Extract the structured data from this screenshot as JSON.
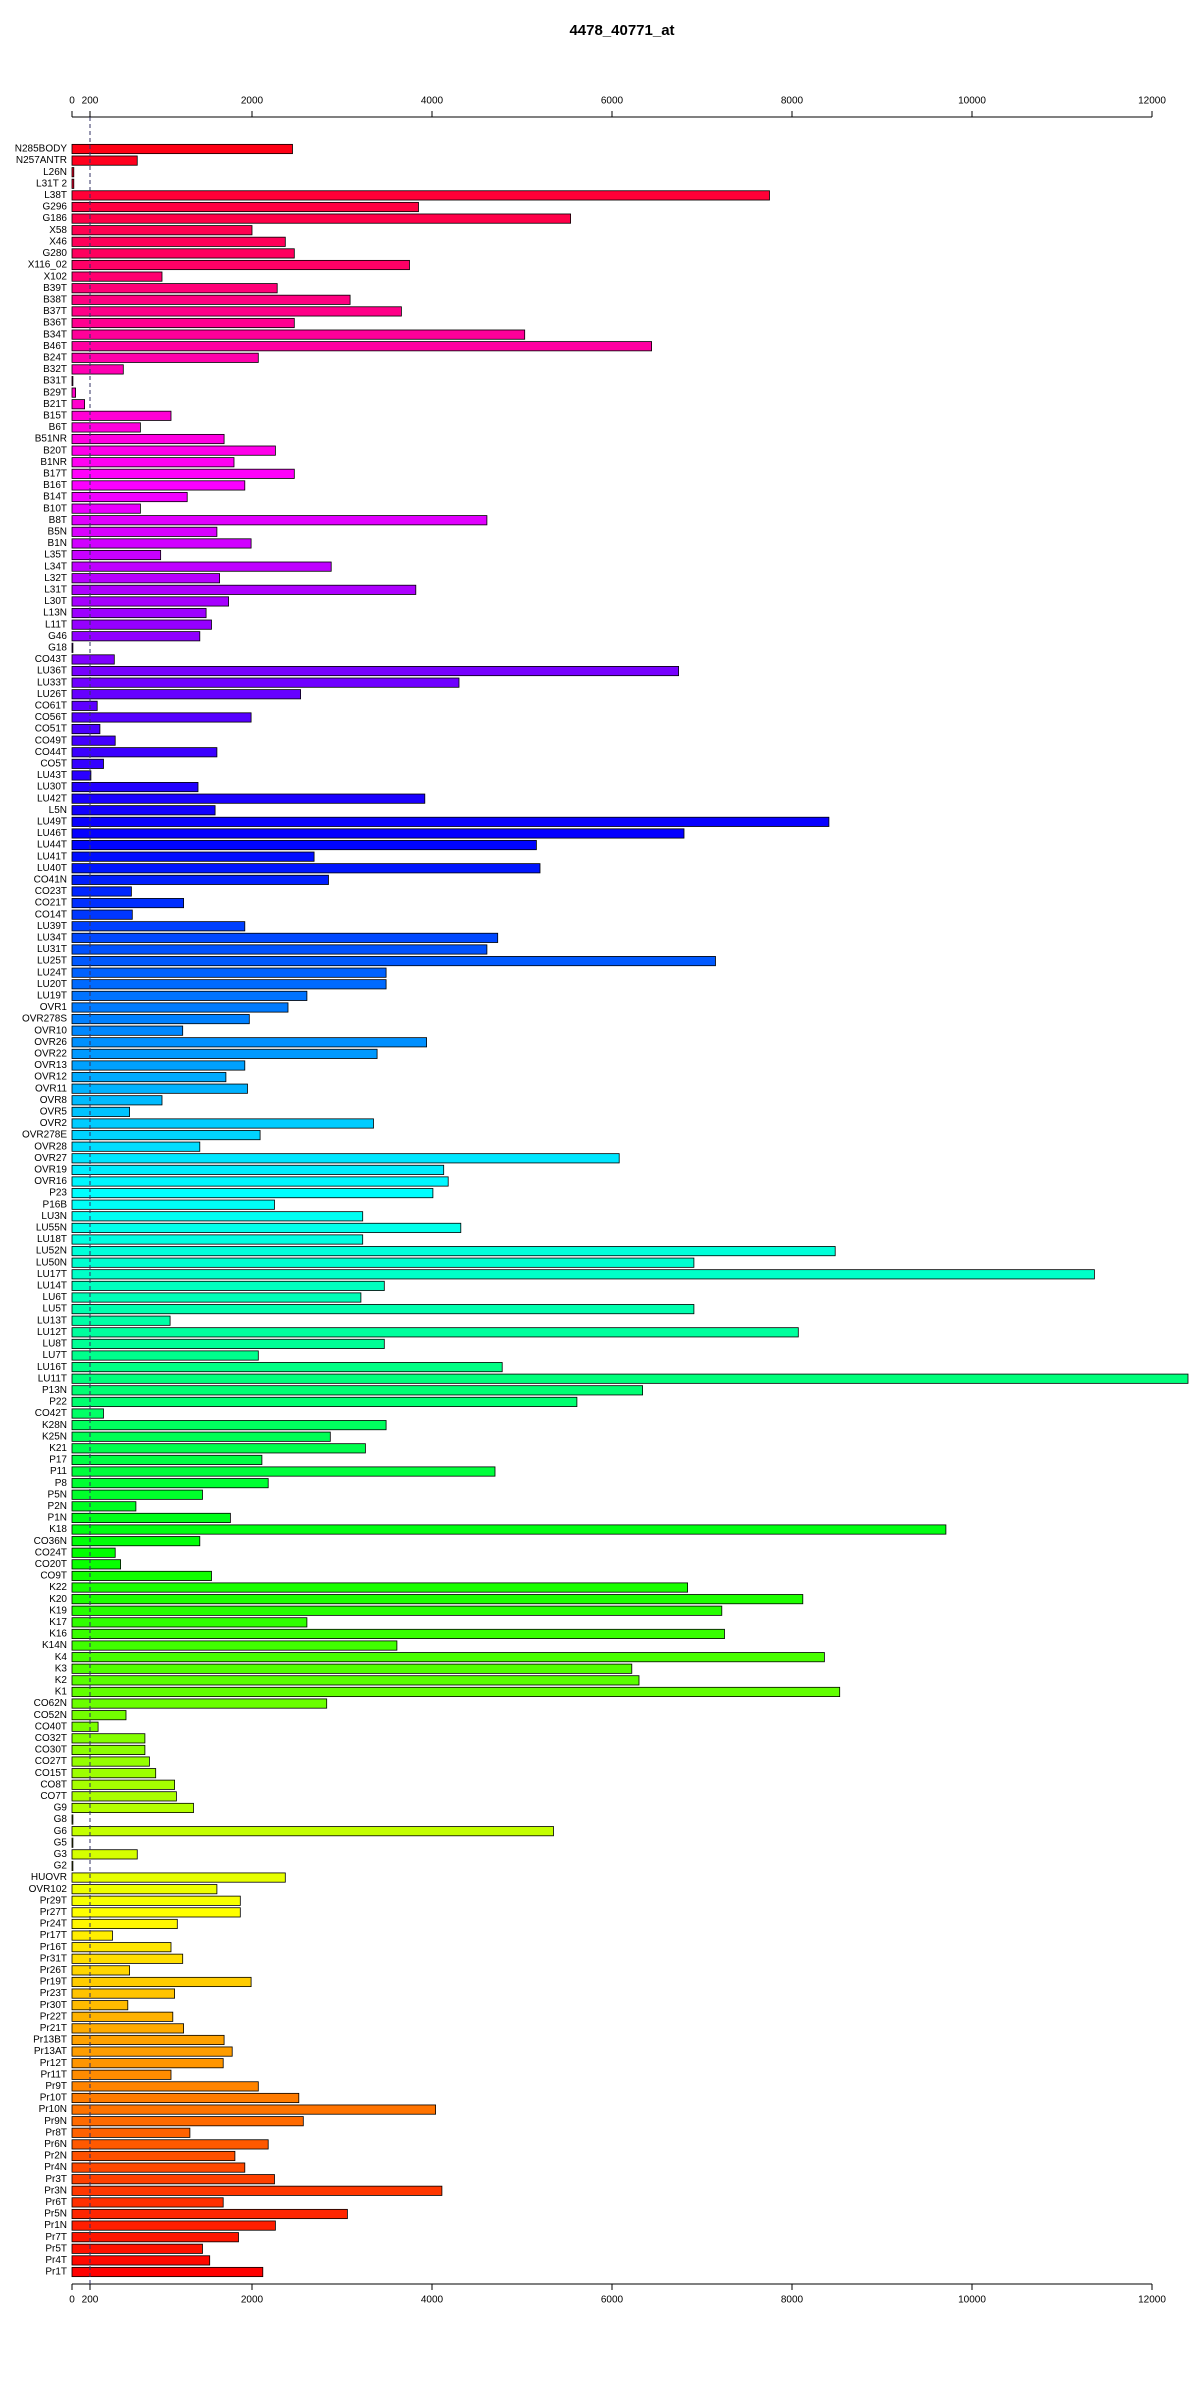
{
  "chart_data": {
    "type": "barh",
    "title": "4478_40771_at",
    "categories": [
      "N285BODY",
      "N257ANTR",
      "L26N",
      "L31T 2",
      "L38T",
      "G296",
      "G186",
      "X58",
      "X46",
      "G280",
      "X116_02",
      "X102",
      "B39T",
      "B38T",
      "B37T",
      "B36T",
      "B34T",
      "B46T",
      "B24T",
      "B32T",
      "B31T",
      "B29T",
      "B21T",
      "B15T",
      "B6T",
      "B51NR",
      "B20T",
      "B1NR",
      "B17T",
      "B16T",
      "B14T",
      "B10T",
      "B8T",
      "B5N",
      "B1N",
      "L35T",
      "L34T",
      "L32T",
      "L31T",
      "L30T",
      "L13N",
      "L11T",
      "G46",
      "G18",
      "CO43T",
      "LU36T",
      "LU33T",
      "LU26T",
      "CO61T",
      "CO56T",
      "CO51T",
      "CO49T",
      "CO44T",
      "CO5T",
      "LU43T",
      "LU30T",
      "LU42T",
      "L5N",
      "LU49T",
      "LU46T",
      "LU44T",
      "LU41T",
      "LU40T",
      "CO41N",
      "CO23T",
      "CO21T",
      "CO14T",
      "LU39T",
      "LU34T",
      "LU31T",
      "LU25T",
      "LU24T",
      "LU20T",
      "LU19T",
      "OVR1",
      "OVR278S",
      "OVR10",
      "OVR26",
      "OVR22",
      "OVR13",
      "OVR12",
      "OVR11",
      "OVR8",
      "OVR5",
      "OVR2",
      "OVR278E",
      "OVR28",
      "OVR27",
      "OVR19",
      "OVR16",
      "P23",
      "P16B",
      "LU3N",
      "LU55N",
      "LU18T",
      "LU52N",
      "LU50N",
      "LU17T",
      "LU14T",
      "LU6T",
      "LU5T",
      "LU13T",
      "LU12T",
      "LU8T",
      "LU7T",
      "LU16T",
      "LU11T",
      "P13N",
      "P22",
      "CO42T",
      "K28N",
      "K25N",
      "K21",
      "P17",
      "P11",
      "P8",
      "P5N",
      "P2N",
      "P1N",
      "K18",
      "CO36N",
      "CO24T",
      "CO20T",
      "CO9T",
      "K22",
      "K20",
      "K19",
      "K17",
      "K16",
      "K14N",
      "K4",
      "K3",
      "K2",
      "K1",
      "CO62N",
      "CO52N",
      "CO40T",
      "CO32T",
      "CO30T",
      "CO27T",
      "CO15T",
      "CO8T",
      "CO7T",
      "G9",
      "G8",
      "G6",
      "G5",
      "G3",
      "G2",
      "HUOVR",
      "OVR102",
      "Pr29T",
      "Pr27T",
      "Pr24T",
      "Pr17T",
      "Pr16T",
      "Pr31T",
      "Pr26T",
      "Pr19T",
      "Pr23T",
      "Pr30T",
      "Pr22T",
      "Pr21T",
      "Pr13BT",
      "Pr13AT",
      "Pr12T",
      "Pr11T",
      "Pr9T",
      "Pr10T",
      "Pr10N",
      "Pr9N",
      "Pr8T",
      "Pr6N",
      "Pr2N",
      "Pr4N",
      "Pr3T",
      "Pr3N",
      "Pr6T",
      "Pr5N",
      "Pr1N",
      "Pr7T",
      "Pr5T",
      "Pr4T",
      "Pr1T"
    ],
    "values": [
      2450,
      725,
      20,
      20,
      7750,
      3850,
      5540,
      2000,
      2370,
      2470,
      3750,
      1000,
      2280,
      3090,
      3660,
      2470,
      5030,
      6440,
      2070,
      570,
      10,
      40,
      140,
      1100,
      760,
      1690,
      2260,
      1800,
      2470,
      1920,
      1280,
      760,
      4610,
      1610,
      1990,
      985,
      2880,
      1640,
      3820,
      1740,
      1490,
      1550,
      1420,
      10,
      470,
      6740,
      4300,
      2540,
      280,
      1990,
      310,
      480,
      1610,
      350,
      210,
      1400,
      3920,
      1590,
      8410,
      6800,
      5160,
      2690,
      5200,
      2850,
      660,
      1240,
      670,
      1920,
      4730,
      4610,
      7150,
      3490,
      3490,
      2610,
      2400,
      1970,
      1230,
      3940,
      3390,
      1920,
      1710,
      1950,
      1000,
      640,
      3350,
      2090,
      1420,
      6080,
      4130,
      4180,
      4010,
      2250,
      3230,
      4320,
      3230,
      8480,
      6910,
      11360,
      3470,
      3210,
      6910,
      1090,
      8070,
      3470,
      2070,
      4780,
      12400,
      6340,
      5610,
      350,
      3490,
      2870,
      3260,
      2110,
      4700,
      2180,
      1450,
      710,
      1760,
      9710,
      1420,
      480,
      540,
      1550,
      6840,
      8120,
      7220,
      2610,
      7250,
      3610,
      8360,
      6220,
      6300,
      8530,
      2830,
      600,
      290,
      810,
      810,
      860,
      930,
      1140,
      1160,
      1350,
      10,
      5350,
      10,
      725,
      10,
      2370,
      1610,
      1870,
      1870,
      1170,
      450,
      1100,
      1230,
      640,
      1990,
      1140,
      620,
      1120,
      1240,
      1690,
      1780,
      1680,
      1100,
      2070,
      2520,
      4040,
      2570,
      1310,
      2180,
      1810,
      1920,
      2250,
      4110,
      1680,
      3060,
      2260,
      1850,
      1450,
      1530,
      2120
    ],
    "colors": [
      "hsl(355,100%,50%)",
      "hsl(353,100%,50%)",
      "hsl(351,100%,50%)",
      "hsl(349,100%,50%)",
      "hsl(347,100%,50%)",
      "hsl(345,100%,50%)",
      "hsl(343,100%,50%)",
      "hsl(341,100%,50%)",
      "hsl(339,100%,50%)",
      "hsl(338,100%,50%)",
      "hsl(336,100%,50%)",
      "hsl(334,100%,50%)",
      "hsl(332,100%,50%)",
      "hsl(330,100%,50%)",
      "hsl(328,100%,50%)",
      "hsl(326,100%,50%)",
      "hsl(324,100%,50%)",
      "hsl(322,100%,50%)",
      "hsl(320,100%,50%)",
      "hsl(318,100%,50%)",
      "hsl(316,100%,50%)",
      "hsl(314,100%,50%)",
      "hsl(312,100%,50%)",
      "hsl(310,100%,50%)",
      "hsl(308,100%,50%)",
      "hsl(307,100%,50%)",
      "hsl(305,100%,50%)",
      "hsl(303,100%,50%)",
      "hsl(301,100%,50%)",
      "hsl(299,100%,50%)",
      "hsl(297,100%,50%)",
      "hsl(295,100%,50%)",
      "hsl(293,100%,50%)",
      "hsl(291,100%,50%)",
      "hsl(289,100%,50%)",
      "hsl(287,100%,50%)",
      "hsl(285,100%,50%)",
      "hsl(283,100%,50%)",
      "hsl(281,100%,50%)",
      "hsl(279,100%,50%)",
      "hsl(277,100%,50%)",
      "hsl(275,100%,50%)",
      "hsl(274,100%,50%)",
      "hsl(272,100%,50%)",
      "hsl(270,100%,50%)",
      "hsl(268,100%,50%)",
      "hsl(266,100%,50%)",
      "hsl(264,100%,50%)",
      "hsl(262,100%,50%)",
      "hsl(260,100%,50%)",
      "hsl(258,100%,50%)",
      "hsl(256,100%,50%)",
      "hsl(254,100%,50%)",
      "hsl(252,100%,50%)",
      "hsl(250,100%,50%)",
      "hsl(248,100%,50%)",
      "hsl(246,100%,50%)",
      "hsl(244,100%,50%)",
      "hsl(242,100%,50%)",
      "hsl(241,100%,50%)",
      "hsl(239,100%,50%)",
      "hsl(237,100%,50%)",
      "hsl(235,100%,50%)",
      "hsl(233,100%,50%)",
      "hsl(231,100%,50%)",
      "hsl(229,100%,50%)",
      "hsl(227,100%,50%)",
      "hsl(225,100%,50%)",
      "hsl(223,100%,50%)",
      "hsl(221,100%,50%)",
      "hsl(219,100%,50%)",
      "hsl(217,100%,50%)",
      "hsl(215,100%,50%)",
      "hsl(213,100%,50%)",
      "hsl(211,100%,50%)",
      "hsl(210,100%,50%)",
      "hsl(208,100%,50%)",
      "hsl(206,100%,50%)",
      "hsl(204,100%,50%)",
      "hsl(202,100%,50%)",
      "hsl(200,100%,50%)",
      "hsl(198,100%,50%)",
      "hsl(196,100%,50%)",
      "hsl(194,100%,50%)",
      "hsl(192,100%,50%)",
      "hsl(190,100%,50%)",
      "hsl(188,100%,50%)",
      "hsl(186,100%,50%)",
      "hsl(184,100%,50%)",
      "hsl(182,100%,50%)",
      "hsl(180,100%,50%)",
      "hsl(178,100%,50%)",
      "hsl(177,100%,50%)",
      "hsl(175,100%,50%)",
      "hsl(173,100%,50%)",
      "hsl(171,100%,50%)",
      "hsl(169,100%,50%)",
      "hsl(167,100%,50%)",
      "hsl(165,100%,50%)",
      "hsl(163,100%,50%)",
      "hsl(161,100%,50%)",
      "hsl(159,100%,50%)",
      "hsl(157,100%,50%)",
      "hsl(155,100%,50%)",
      "hsl(153,100%,50%)",
      "hsl(151,100%,50%)",
      "hsl(149,100%,50%)",
      "hsl(147,100%,50%)",
      "hsl(146,100%,50%)",
      "hsl(144,100%,50%)",
      "hsl(142,100%,50%)",
      "hsl(140,100%,50%)",
      "hsl(138,100%,50%)",
      "hsl(136,100%,50%)",
      "hsl(134,100%,50%)",
      "hsl(132,100%,50%)",
      "hsl(130,100%,50%)",
      "hsl(128,100%,50%)",
      "hsl(126,100%,50%)",
      "hsl(124,100%,50%)",
      "hsl(122,100%,50%)",
      "hsl(120,100%,50%)",
      "hsl(118,100%,50%)",
      "hsl(116,100%,50%)",
      "hsl(114,100%,50%)",
      "hsl(113,100%,50%)",
      "hsl(111,100%,50%)",
      "hsl(109,100%,50%)",
      "hsl(107,100%,50%)",
      "hsl(105,100%,50%)",
      "hsl(103,100%,50%)",
      "hsl(101,100%,50%)",
      "hsl(99,100%,50%)",
      "hsl(97,100%,50%)",
      "hsl(95,100%,50%)",
      "hsl(93,100%,50%)",
      "hsl(91,100%,50%)",
      "hsl(89,100%,50%)",
      "hsl(87,100%,50%)",
      "hsl(85,100%,50%)",
      "hsl(83,100%,50%)",
      "hsl(81,100%,50%)",
      "hsl(80,100%,50%)",
      "hsl(78,100%,50%)",
      "hsl(76,100%,50%)",
      "hsl(74,100%,50%)",
      "hsl(72,100%,50%)",
      "hsl(70,100%,50%)",
      "hsl(68,100%,50%)",
      "hsl(66,100%,50%)",
      "hsl(64,100%,50%)",
      "hsl(62,100%,50%)",
      "hsl(60,100%,50%)",
      "hsl(58,100%,50%)",
      "hsl(56,100%,50%)",
      "hsl(54,100%,50%)",
      "hsl(52,100%,50%)",
      "hsl(50,100%,50%)",
      "hsl(48,100%,50%)",
      "hsl(46,100%,50%)",
      "hsl(44,100%,50%)",
      "hsl(42,100%,50%)",
      "hsl(40,100%,50%)",
      "hsl(38,100%,50%)",
      "hsl(37,100%,50%)",
      "hsl(35,100%,50%)",
      "hsl(33,100%,50%)",
      "hsl(31,100%,50%)",
      "hsl(29,100%,50%)",
      "hsl(27,100%,50%)",
      "hsl(25,100%,50%)",
      "hsl(23,100%,50%)",
      "hsl(21,100%,50%)",
      "hsl(19,100%,50%)",
      "hsl(17,100%,50%)",
      "hsl(15,100%,50%)",
      "hsl(13,100%,50%)",
      "hsl(11,100%,50%)",
      "hsl(9,100%,50%)",
      "hsl(7,100%,50%)",
      "hsl(5,100%,50%)",
      "hsl(4,100%,50%)",
      "hsl(2,100%,50%)",
      "hsl(0,100%,50%)"
    ],
    "xlim": [
      0,
      12000
    ],
    "xticks": [
      0,
      200,
      2000,
      4000,
      6000,
      8000,
      10000,
      12000
    ],
    "reference_line": 200
  }
}
